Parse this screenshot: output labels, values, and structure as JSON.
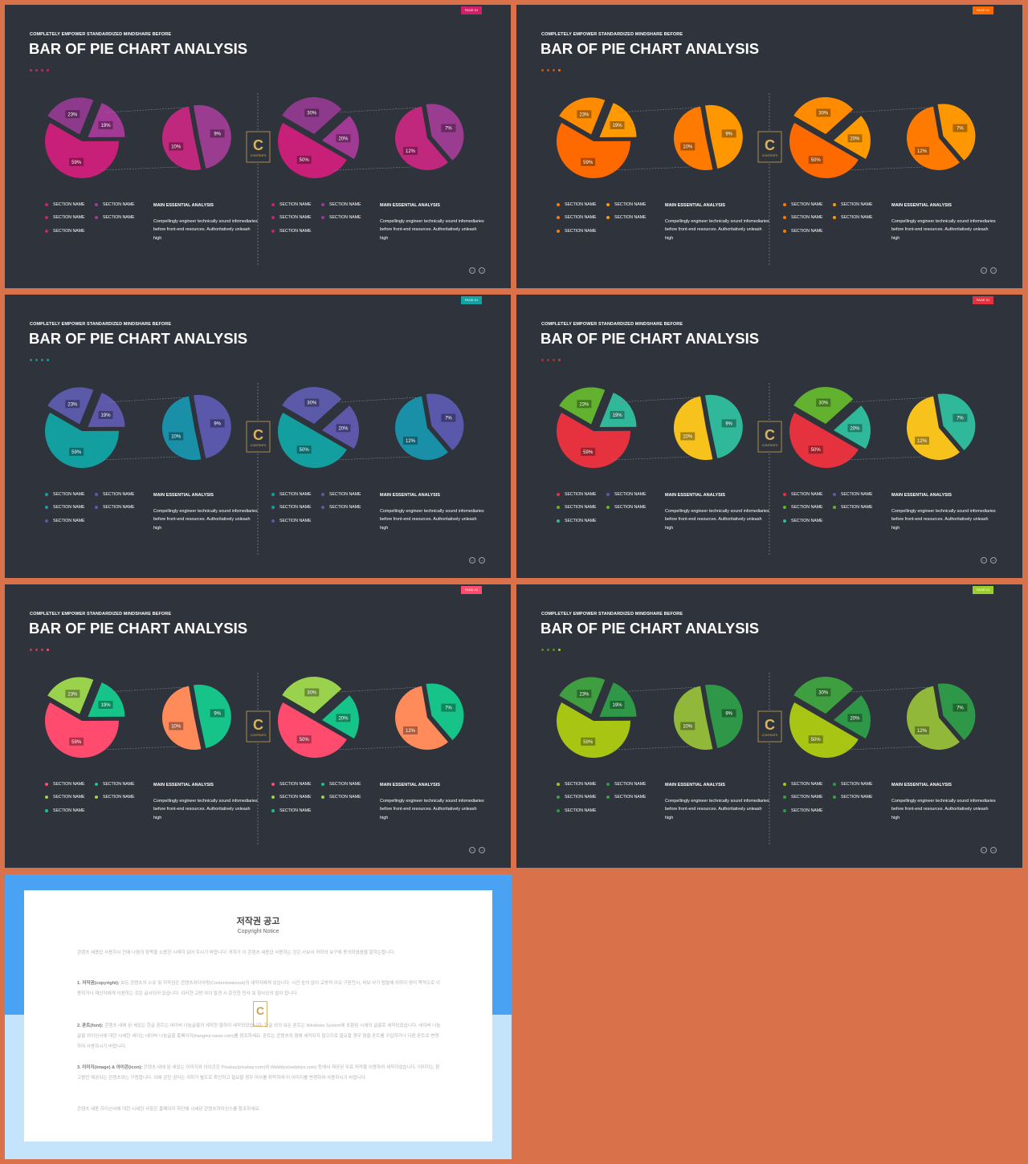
{
  "kicker": "COMPLETELY  EMPOWER  STANDARDIZED  MINDSHARE  BEFORE",
  "title": "BAR OF PIE CHART ANALYSIS",
  "page_badge": "PAGE 01",
  "legend_label": "SECTION NAME",
  "main_heading": "MAIN ESSENTIAL  ANALYSIS",
  "main_body": "Compellingly engineer technically sound infomediaries before front-end resources. Authoritatively unleash high",
  "logo_letter": "C",
  "logo_caption": "CONTENTS",
  "nav_prev": "←",
  "nav_next": "→",
  "chart_data": [
    {
      "type": "pie",
      "subtype": "bar-of-pie",
      "main_pie": [
        {
          "label": "59%",
          "value": 59
        },
        {
          "label": "23%",
          "value": 23
        },
        {
          "label": "19%",
          "value": 19
        }
      ],
      "secondary_pie": [
        {
          "label": "10%",
          "value": 10
        },
        {
          "label": "9%",
          "value": 9
        }
      ]
    },
    {
      "type": "pie",
      "subtype": "bar-of-pie",
      "main_pie": [
        {
          "label": "50%",
          "value": 50
        },
        {
          "label": "30%",
          "value": 30
        },
        {
          "label": "20%",
          "value": 20
        }
      ],
      "secondary_pie": [
        {
          "label": "12%",
          "value": 12
        },
        {
          "label": "7%",
          "value": 7
        }
      ]
    }
  ],
  "slides": [
    {
      "badge_color": "#d0206a",
      "colors": {
        "a": "#c81f78",
        "b": "#8e3a8c",
        "c": "#a03a94",
        "s1": "#c0287e",
        "s2": "#9a3c90"
      },
      "dots": [
        "#a33a6a",
        "#a33a6a",
        "#a33a6a",
        "#d0206a"
      ],
      "legend_colors": [
        "#c81f78",
        "#a03a94",
        "#c81f78",
        "#a03a94",
        "#c81f78"
      ]
    },
    {
      "badge_color": "#ff6a00",
      "colors": {
        "a": "#ff6a00",
        "b": "#ff8c00",
        "c": "#ff9a00",
        "s1": "#ff7a00",
        "s2": "#ff9800"
      },
      "dots": [
        "#b35a2a",
        "#b35a2a",
        "#b35a2a",
        "#ff6a00"
      ],
      "legend_colors": [
        "#ff7a00",
        "#ff9800",
        "#ff7a00",
        "#ff9800",
        "#ff7a00"
      ]
    },
    {
      "badge_color": "#12a3a5",
      "colors": {
        "a": "#139e9f",
        "b": "#5a5aa8",
        "c": "#5e58aa",
        "s1": "#1a8fa8",
        "s2": "#5a58aa"
      },
      "dots": [
        "#2f8a8a",
        "#2f8a8a",
        "#2f8a8a",
        "#12a3a5"
      ],
      "legend_colors": [
        "#139e9f",
        "#5a5aa8",
        "#139e9f",
        "#5a5aa8",
        "#5a5aa8"
      ]
    },
    {
      "badge_color": "#e6313f",
      "colors": {
        "a": "#e6323f",
        "b": "#62b230",
        "c": "#2fb89a",
        "s1": "#f6c21b",
        "s2": "#2fb89a"
      },
      "dots": [
        "#a5333a",
        "#a5333a",
        "#a5333a",
        "#e6313f"
      ],
      "legend_colors": [
        "#e6323f",
        "#5a5aa8",
        "#62b230",
        "#62b230",
        "#2fb89a"
      ]
    },
    {
      "badge_color": "#ff4b6e",
      "colors": {
        "a": "#ff4b6e",
        "b": "#9bd24d",
        "c": "#16c48a",
        "s1": "#ff8a5a",
        "s2": "#16c48a"
      },
      "dots": [
        "#b3445a",
        "#b3445a",
        "#b3445a",
        "#ff4b6e"
      ],
      "legend_colors": [
        "#ff4b6e",
        "#16c48a",
        "#9bd24d",
        "#9bd24d",
        "#16c48a"
      ]
    },
    {
      "badge_color": "#9ccf2c",
      "colors": {
        "a": "#a8c514",
        "b": "#3e9e40",
        "c": "#2f9848",
        "s1": "#92b83a",
        "s2": "#2f9848"
      },
      "dots": [
        "#5a8a30",
        "#5a8a30",
        "#5a8a30",
        "#9ccf2c"
      ],
      "legend_colors": [
        "#a8c514",
        "#2f9848",
        "#3e9e40",
        "#3e9e40",
        "#2f9848"
      ]
    }
  ],
  "copyright": {
    "title": "저작권 공고",
    "subtitle": "Copyright Notice",
    "intro": "콘텐츠 세종압 사용하시 전에 나음의 항목을 소용한 시례히 읽어 주시기 바랍니다. 귀하가 이 콘텐츠 세종압 사용하는 것은 사보서 귀하의 보구에 동의하였음을 말하는합니다.",
    "p1_head": "1. 저작권(copyright):",
    "p1": "보든 콘텐츠의 소유 및 저작권은 콘텐츠위다이빙(Contentstakeout)의 세작자에게 있습니다. 시전 승의 없이 교방적 이오 구판전시, 비보 사가 법발에 외하이 영리 목적으로 이용하거나 재산자에게 이용하는 것은 글시되어 있습니다. 이러한 교방 차이 발견 시 준인한 민사 및 형사상의 벌이 됩니다.",
    "p2_head": "2. 폰트(font):",
    "p2": "콘텐츠 내에 된 세있는 한글 폰트는 네이버 나눔글꼴의 세작한 들하이 세작되었습니다. 한글 외의 보든 폰트는 Windows System에 포함된 시세의 글꼴로 세작되었습니다. 네이버 나눔글꼴 외이신서에 대한 시세한 세이는 네이버 나눔글꼴 홈페이지(hangeul.naver.com)를 참조하세요. 폰트는 콘텐츠의 형에 세작되지 않으므로 필요할 경우 형을 폰트를 구입하거나 다른 폰트로 변경하여 사용하시기 바랍니다.",
    "p3_head": "3. 이미지(image) & 아이콘(icon):",
    "p3": "콘텐츠 내에 된 세있는 이미지와 아이콘은 Pixabay(pixabay.com)와 Webblys(webblys.com) 등에서 제공된 무료 저작물 이용하여 세작되었습니다. 이미지는 참고용만 제공되는 콘텐츠와는 구원합니다. 이에 관한 권리는 귀하가 별도로 확인하고 필요할 경우 여사를 취득하여 이 이미지를 변경하여 사용하시기 바랍니다.",
    "outro": "콘텐츠 세종 하이선서에 대한 시세한 사항은 홈페이지 하단에 시세된 콘텐츠하이선스를 참조하세요."
  }
}
